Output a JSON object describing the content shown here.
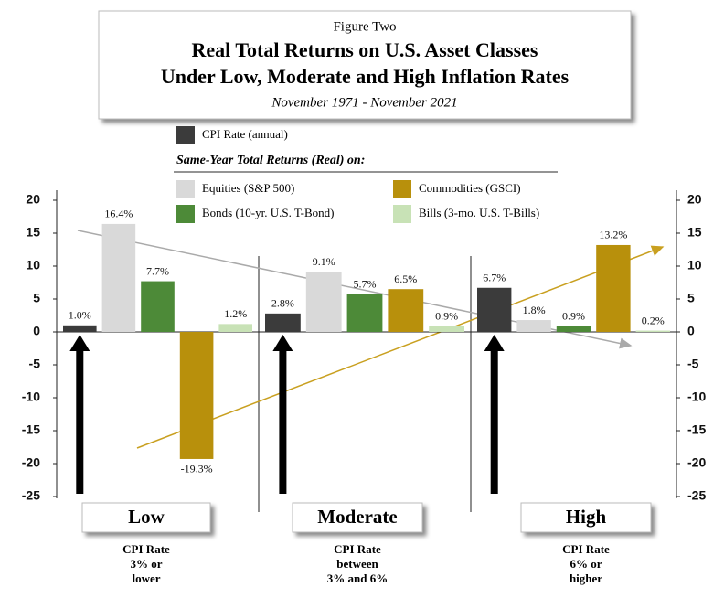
{
  "chart_data": {
    "type": "bar",
    "figure_label": "Figure Two",
    "title": [
      "Real Total Returns on U.S. Asset Classes",
      "Under Low, Moderate and High Inflation Rates"
    ],
    "subtitle": "November 1971 - November 2021",
    "legend_heading": "Same-Year Total Returns (Real) on:",
    "categories": [
      "Low",
      "Moderate",
      "High"
    ],
    "category_notes": [
      [
        "CPI Rate",
        "3% or",
        "lower"
      ],
      [
        "CPI Rate",
        "between",
        "3% and 6%"
      ],
      [
        "CPI Rate",
        "6% or",
        "higher"
      ]
    ],
    "series": [
      {
        "name": "CPI Rate (annual)",
        "color": "#3b3b3b",
        "values": [
          1.0,
          2.8,
          6.7
        ],
        "value_labels": [
          "1.0%",
          "2.8%",
          "6.7%"
        ]
      },
      {
        "name": "Equities (S&P 500)",
        "color": "#d9d9d9",
        "values": [
          16.4,
          9.1,
          1.8
        ],
        "value_labels": [
          "16.4%",
          "9.1%",
          "1.8%"
        ]
      },
      {
        "name": "Bonds (10-yr. U.S. T-Bond)",
        "color": "#4d8a38",
        "values": [
          7.7,
          5.7,
          0.9
        ],
        "value_labels": [
          "7.7%",
          "5.7%",
          "0.9%"
        ]
      },
      {
        "name": "Commodities (GSCI)",
        "color": "#b8900c",
        "values": [
          -19.3,
          6.5,
          13.2
        ],
        "value_labels": [
          "-19.3%",
          "6.5%",
          "13.2%"
        ]
      },
      {
        "name": "Bills (3-mo. U.S. T-Bills)",
        "color": "#c8e2b6",
        "values": [
          1.2,
          0.9,
          0.2
        ],
        "value_labels": [
          "1.2%",
          "0.9%",
          "0.2%"
        ]
      }
    ],
    "ylim": [
      -25,
      20
    ],
    "yticks": [
      20,
      15,
      10,
      5,
      0,
      -5,
      -10,
      -15,
      -20,
      -25
    ],
    "y2lim": [
      -25,
      20
    ],
    "y2ticks": [
      20,
      15,
      10,
      5,
      0,
      -5,
      -10,
      -15,
      -20,
      -25
    ]
  }
}
